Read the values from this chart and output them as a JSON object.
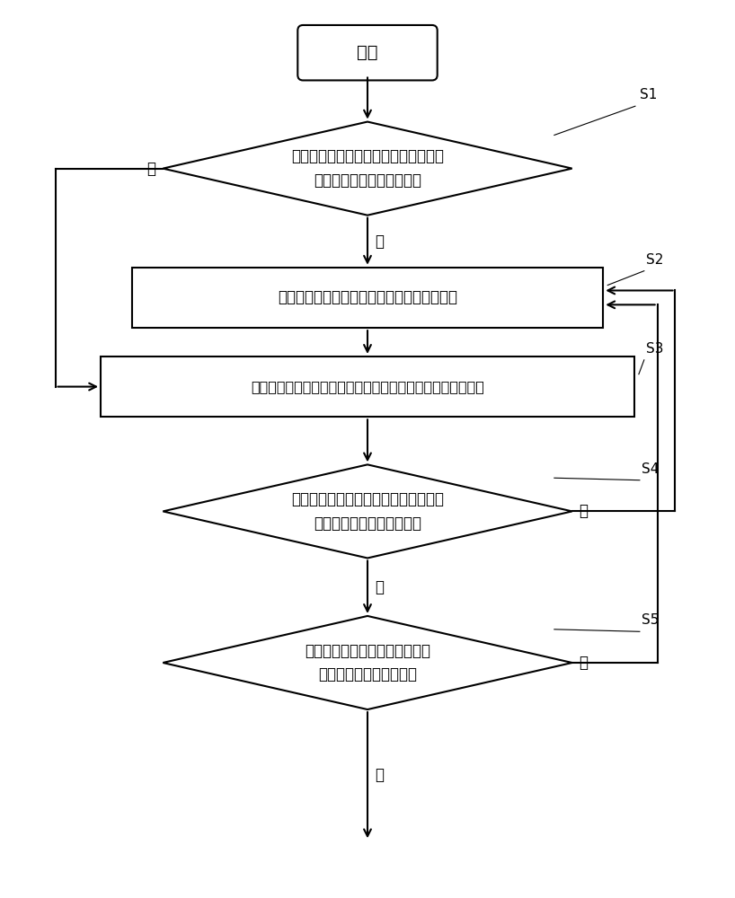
{
  "bg_color": "#ffffff",
  "start_text": "绿灯",
  "d1_text": "初始绿灯时间结束时检测是否有与当前\n相位相冲突的行人强行过街",
  "r1_text": "输出更换相位控制指令，控制信号灯更换相位",
  "r2_text": "输出延时更换相位控制指令控制信号灯延时单位绿灯延长时间",
  "d2_text": "在信号灯延时了单位绿灯延长时间后，\n判断强行过街人流是否中断",
  "d3_text": "信号灯的绿灯累积延长时间是否\n达到设定的极限延长时间",
  "s1_label": "S1",
  "s2_label": "S2",
  "s3_label": "S3",
  "s4_label": "S4",
  "s5_label": "S5",
  "yes_text": "是",
  "no_text": "否",
  "line_color": "#000000",
  "line_width": 1.5
}
